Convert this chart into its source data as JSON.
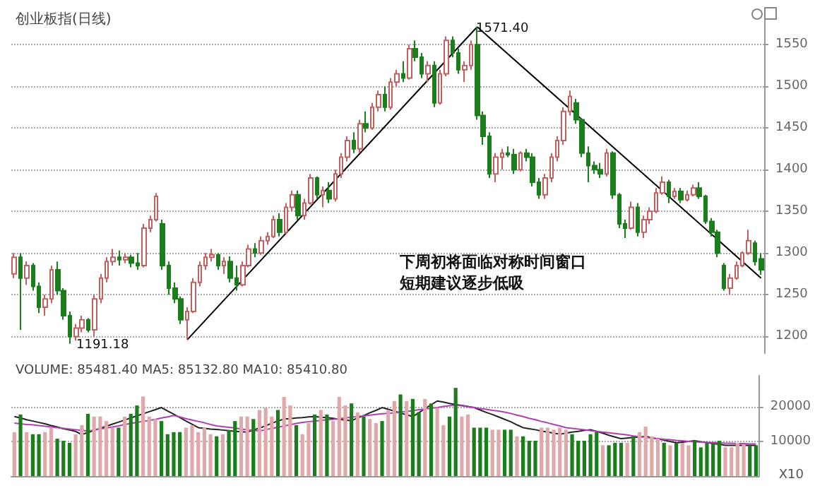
{
  "chart_data": [
    {
      "type": "candlestick",
      "title": "创业板指(日线)",
      "categories": [
        null,
        null,
        null,
        null,
        null,
        null,
        null,
        null,
        null,
        null,
        null,
        null,
        null,
        null,
        null,
        null,
        null,
        null,
        null,
        null,
        null,
        null,
        null,
        null,
        null,
        null,
        null,
        null,
        null,
        null,
        null,
        null,
        null,
        null,
        null,
        null,
        null,
        null,
        null,
        null,
        null,
        null,
        null,
        null,
        null,
        null,
        null,
        null,
        null,
        null,
        null,
        null,
        null,
        null,
        null,
        null,
        null,
        null,
        null,
        null,
        null,
        null,
        null,
        null,
        null,
        null,
        null,
        null,
        null,
        null,
        null,
        null,
        null,
        null,
        null,
        null,
        null,
        null,
        null,
        null,
        null,
        null,
        null,
        null,
        null,
        null,
        null,
        null,
        null,
        null,
        null,
        null,
        null,
        null,
        null,
        null,
        null,
        null,
        null,
        null,
        null,
        null,
        null,
        null,
        null,
        null,
        null,
        null,
        null,
        null,
        null,
        null,
        null,
        null,
        null,
        null,
        null,
        null,
        null,
        null,
        null,
        null
      ],
      "ohlc": [
        [
          1275,
          1300,
          1270,
          1295
        ],
        [
          1295,
          1300,
          1208,
          1270
        ],
        [
          1270,
          1290,
          1262,
          1285
        ],
        [
          1285,
          1288,
          1255,
          1260
        ],
        [
          1260,
          1265,
          1228,
          1235
        ],
        [
          1235,
          1250,
          1225,
          1245
        ],
        [
          1245,
          1285,
          1240,
          1280
        ],
        [
          1280,
          1290,
          1250,
          1255
        ],
        [
          1255,
          1258,
          1220,
          1225
        ],
        [
          1225,
          1230,
          1191.18,
          1200
        ],
        [
          1200,
          1215,
          1195,
          1210
        ],
        [
          1210,
          1225,
          1205,
          1220
        ],
        [
          1220,
          1222,
          1205,
          1208
        ],
        [
          1208,
          1250,
          1200,
          1245
        ],
        [
          1245,
          1275,
          1240,
          1270
        ],
        [
          1270,
          1295,
          1265,
          1290
        ],
        [
          1290,
          1305,
          1285,
          1295
        ],
        [
          1295,
          1303,
          1285,
          1292
        ],
        [
          1292,
          1300,
          1288,
          1295
        ],
        [
          1295,
          1298,
          1283,
          1288
        ],
        [
          1288,
          1300,
          1280,
          1285
        ],
        [
          1285,
          1335,
          1283,
          1330
        ],
        [
          1330,
          1345,
          1325,
          1340
        ],
        [
          1340,
          1372,
          1338,
          1368
        ],
        [
          1335,
          1340,
          1280,
          1285
        ],
        [
          1285,
          1290,
          1250,
          1258
        ],
        [
          1258,
          1265,
          1240,
          1245
        ],
        [
          1245,
          1248,
          1215,
          1220
        ],
        [
          1220,
          1235,
          1196,
          1230
        ],
        [
          1230,
          1270,
          1228,
          1265
        ],
        [
          1265,
          1290,
          1260,
          1285
        ],
        [
          1285,
          1300,
          1280,
          1295
        ],
        [
          1295,
          1305,
          1290,
          1298
        ],
        [
          1298,
          1300,
          1280,
          1285
        ],
        [
          1285,
          1295,
          1275,
          1290
        ],
        [
          1290,
          1296,
          1265,
          1270
        ],
        [
          1270,
          1285,
          1255,
          1262
        ],
        [
          1262,
          1290,
          1260,
          1285
        ],
        [
          1285,
          1310,
          1283,
          1305
        ],
        [
          1305,
          1312,
          1295,
          1300
        ],
        [
          1300,
          1320,
          1298,
          1315
        ],
        [
          1315,
          1325,
          1310,
          1320
        ],
        [
          1320,
          1345,
          1318,
          1340
        ],
        [
          1340,
          1348,
          1320,
          1325
        ],
        [
          1325,
          1360,
          1323,
          1355
        ],
        [
          1355,
          1375,
          1350,
          1370
        ],
        [
          1370,
          1375,
          1340,
          1345
        ],
        [
          1345,
          1365,
          1340,
          1360
        ],
        [
          1360,
          1395,
          1358,
          1390
        ],
        [
          1390,
          1392,
          1365,
          1370
        ],
        [
          1370,
          1380,
          1355,
          1375
        ],
        [
          1375,
          1385,
          1360,
          1365
        ],
        [
          1365,
          1400,
          1362,
          1395
        ],
        [
          1395,
          1420,
          1390,
          1415
        ],
        [
          1415,
          1440,
          1410,
          1435
        ],
        [
          1435,
          1445,
          1420,
          1425
        ],
        [
          1425,
          1460,
          1420,
          1455
        ],
        [
          1455,
          1470,
          1445,
          1450
        ],
        [
          1450,
          1480,
          1448,
          1475
        ],
        [
          1475,
          1495,
          1470,
          1490
        ],
        [
          1490,
          1500,
          1470,
          1475
        ],
        [
          1475,
          1510,
          1472,
          1505
        ],
        [
          1505,
          1520,
          1500,
          1515
        ],
        [
          1515,
          1530,
          1505,
          1510
        ],
        [
          1510,
          1550,
          1508,
          1545
        ],
        [
          1545,
          1555,
          1530,
          1535
        ],
        [
          1535,
          1540,
          1510,
          1515
        ],
        [
          1515,
          1530,
          1505,
          1525
        ],
        [
          1525,
          1530,
          1475,
          1480
        ],
        [
          1480,
          1520,
          1478,
          1515
        ],
        [
          1515,
          1560,
          1512,
          1555
        ],
        [
          1555,
          1560,
          1535,
          1540
        ],
        [
          1540,
          1545,
          1515,
          1520
        ],
        [
          1520,
          1530,
          1505,
          1525
        ],
        [
          1525,
          1555,
          1520,
          1550
        ],
        [
          1550,
          1571.4,
          1460,
          1465
        ],
        [
          1465,
          1470,
          1430,
          1440
        ],
        [
          1440,
          1445,
          1390,
          1395
        ],
        [
          1395,
          1420,
          1385,
          1415
        ],
        [
          1415,
          1425,
          1400,
          1420
        ],
        [
          1420,
          1428,
          1415,
          1418
        ],
        [
          1418,
          1425,
          1395,
          1400
        ],
        [
          1400,
          1422,
          1398,
          1420
        ],
        [
          1420,
          1425,
          1410,
          1415
        ],
        [
          1415,
          1420,
          1380,
          1385
        ],
        [
          1385,
          1390,
          1365,
          1370
        ],
        [
          1370,
          1395,
          1365,
          1390
        ],
        [
          1390,
          1420,
          1385,
          1415
        ],
        [
          1415,
          1440,
          1410,
          1435
        ],
        [
          1435,
          1475,
          1430,
          1470
        ],
        [
          1470,
          1495,
          1465,
          1488
        ],
        [
          1480,
          1485,
          1455,
          1460
        ],
        [
          1460,
          1462,
          1415,
          1420
        ],
        [
          1420,
          1428,
          1385,
          1405
        ],
        [
          1405,
          1410,
          1395,
          1400
        ],
        [
          1400,
          1408,
          1390,
          1395
        ],
        [
          1395,
          1425,
          1392,
          1420
        ],
        [
          1420,
          1422,
          1365,
          1370
        ],
        [
          1370,
          1372,
          1330,
          1335
        ],
        [
          1335,
          1340,
          1318,
          1330
        ],
        [
          1330,
          1362,
          1328,
          1355
        ],
        [
          1355,
          1360,
          1320,
          1325
        ],
        [
          1325,
          1345,
          1318,
          1340
        ],
        [
          1340,
          1355,
          1335,
          1350
        ],
        [
          1350,
          1378,
          1348,
          1372
        ],
        [
          1372,
          1392,
          1370,
          1385
        ],
        [
          1385,
          1388,
          1360,
          1368
        ],
        [
          1368,
          1378,
          1365,
          1374
        ],
        [
          1374,
          1378,
          1360,
          1364
        ],
        [
          1364,
          1375,
          1362,
          1370
        ],
        [
          1370,
          1382,
          1368,
          1378
        ],
        [
          1378,
          1385,
          1365,
          1368
        ],
        [
          1368,
          1370,
          1335,
          1338
        ],
        [
          1338,
          1342,
          1320,
          1325
        ],
        [
          1325,
          1328,
          1295,
          1300
        ],
        [
          1285,
          1288,
          1255,
          1258
        ],
        [
          1258,
          1275,
          1250,
          1270
        ],
        [
          1270,
          1290,
          1268,
          1285
        ],
        [
          1285,
          1302,
          1283,
          1300
        ],
        [
          1300,
          1328,
          1298,
          1315
        ],
        [
          1312,
          1315,
          1285,
          1290
        ],
        [
          1293,
          1300,
          1274,
          1280
        ]
      ],
      "colors": [
        "#c06060",
        "#1b7d1b",
        "#c06060",
        "#1b7d1b",
        "#1b7d1b",
        "#c06060",
        "#c06060",
        "#1b7d1b",
        "#1b7d1b",
        "#1b7d1b",
        "#c06060",
        "#c06060",
        "#1b7d1b",
        "#c06060",
        "#c06060",
        "#c06060",
        "#c06060",
        "#1b7d1b",
        "#c06060",
        "#1b7d1b",
        "#1b7d1b",
        "#c06060",
        "#c06060",
        "#c06060",
        "#1b7d1b",
        "#1b7d1b",
        "#1b7d1b",
        "#1b7d1b",
        "#c06060",
        "#c06060",
        "#c06060",
        "#c06060",
        "#c06060",
        "#1b7d1b",
        "#c06060",
        "#1b7d1b",
        "#1b7d1b",
        "#c06060",
        "#c06060",
        "#1b7d1b",
        "#c06060",
        "#c06060",
        "#c06060",
        "#1b7d1b",
        "#c06060",
        "#c06060",
        "#1b7d1b",
        "#c06060",
        "#c06060",
        "#1b7d1b",
        "#c06060",
        "#1b7d1b",
        "#c06060",
        "#c06060",
        "#c06060",
        "#1b7d1b",
        "#c06060",
        "#1b7d1b",
        "#c06060",
        "#c06060",
        "#1b7d1b",
        "#c06060",
        "#c06060",
        "#1b7d1b",
        "#c06060",
        "#1b7d1b",
        "#1b7d1b",
        "#c06060",
        "#1b7d1b",
        "#c06060",
        "#c06060",
        "#1b7d1b",
        "#1b7d1b",
        "#c06060",
        "#c06060",
        "#1b7d1b",
        "#1b7d1b",
        "#1b7d1b",
        "#c06060",
        "#c06060",
        "#1b7d1b",
        "#1b7d1b",
        "#c06060",
        "#1b7d1b",
        "#1b7d1b",
        "#1b7d1b",
        "#c06060",
        "#c06060",
        "#c06060",
        "#c06060",
        "#c06060",
        "#1b7d1b",
        "#1b7d1b",
        "#1b7d1b",
        "#1b7d1b",
        "#1b7d1b",
        "#c06060",
        "#1b7d1b",
        "#1b7d1b",
        "#1b7d1b",
        "#c06060",
        "#1b7d1b",
        "#c06060",
        "#c06060",
        "#c06060",
        "#c06060",
        "#1b7d1b",
        "#c06060",
        "#1b7d1b",
        "#c06060",
        "#c06060",
        "#1b7d1b",
        "#1b7d1b",
        "#1b7d1b",
        "#1b7d1b",
        "#1b7d1b",
        "#c06060",
        "#c06060",
        "#c06060",
        "#c06060",
        "#1b7d1b",
        "#1b7d1b"
      ],
      "series": [
        {
          "type": "line",
          "color": "#000000",
          "values": [
            null,
            null,
            null,
            null,
            null,
            null,
            null,
            null,
            null,
            null,
            null,
            null,
            null,
            null,
            null,
            null,
            null,
            null,
            null,
            null,
            null,
            null,
            null,
            null,
            null,
            null,
            null,
            null,
            1196,
            null,
            null,
            null,
            null,
            null,
            null,
            null,
            null,
            null,
            null,
            null,
            null,
            null,
            null,
            null,
            null,
            null,
            null,
            null,
            null,
            null,
            null,
            null,
            null,
            null,
            null,
            null,
            null,
            null,
            null,
            null,
            null,
            null,
            null,
            null,
            null,
            null,
            null,
            null,
            null,
            null,
            null,
            null,
            null,
            null,
            null,
            1571.4,
            null,
            null,
            null,
            null,
            null,
            null,
            null,
            null,
            null,
            null,
            null,
            null,
            null,
            null,
            null,
            null,
            null,
            null,
            null,
            null,
            null,
            null,
            null,
            null,
            null,
            null,
            null,
            null,
            null,
            null,
            null,
            null,
            null,
            null,
            null,
            null,
            null,
            null,
            null,
            null,
            null,
            null,
            null,
            null,
            null,
            null
          ]
        },
        {
          "type": "line",
          "color": "#000000",
          "values": [
            null,
            null,
            null,
            null,
            null,
            null,
            null,
            null,
            null,
            null,
            null,
            null,
            null,
            null,
            null,
            null,
            null,
            null,
            null,
            null,
            null,
            null,
            null,
            null,
            null,
            null,
            null,
            null,
            null,
            null,
            null,
            null,
            null,
            null,
            null,
            null,
            null,
            null,
            null,
            null,
            null,
            null,
            null,
            null,
            null,
            null,
            null,
            null,
            null,
            null,
            null,
            null,
            null,
            null,
            null,
            null,
            null,
            null,
            null,
            null,
            null,
            null,
            null,
            null,
            null,
            null,
            null,
            null,
            null,
            null,
            null,
            null,
            null,
            null,
            null,
            1571.4,
            null,
            null,
            null,
            null,
            null,
            null,
            null,
            null,
            null,
            null,
            null,
            null,
            null,
            null,
            null,
            null,
            null,
            null,
            null,
            null,
            null,
            null,
            null,
            null,
            null,
            null,
            null,
            null,
            null,
            null,
            null,
            null,
            null,
            null,
            null,
            null,
            null,
            null,
            null,
            null,
            null,
            null,
            null,
            null,
            null,
            1270
          ]
        }
      ],
      "marker": "none",
      "ylim": [
        1180,
        1590
      ],
      "yticks": [
        1200,
        1250,
        1300,
        1350,
        1400,
        1450,
        1500,
        1550
      ],
      "grid": "y",
      "tick_labels": "y",
      "annotations": [
        "1571.40",
        "1191.18",
        "下周初将面临对称时间窗口",
        "短期建议逐步低吸"
      ]
    },
    {
      "type": "bar",
      "title": "VOLUME: 85481.40 MA5: 85132.80 MA10: 85410.80",
      "categories": [
        null,
        null,
        null,
        null,
        null,
        null,
        null,
        null,
        null,
        null,
        null,
        null,
        null,
        null,
        null,
        null,
        null,
        null,
        null,
        null,
        null,
        null,
        null,
        null,
        null,
        null,
        null,
        null,
        null,
        null,
        null,
        null,
        null,
        null,
        null,
        null,
        null,
        null,
        null,
        null,
        null,
        null,
        null,
        null,
        null,
        null,
        null,
        null,
        null,
        null,
        null,
        null,
        null,
        null,
        null,
        null,
        null,
        null,
        null,
        null,
        null,
        null,
        null,
        null,
        null,
        null,
        null,
        null,
        null,
        null,
        null,
        null,
        null,
        null,
        null,
        null,
        null,
        null,
        null,
        null,
        null,
        null,
        null,
        null,
        null,
        null,
        null,
        null,
        null,
        null,
        null,
        null,
        null,
        null,
        null,
        null,
        null,
        null,
        null,
        null,
        null,
        null,
        null,
        null,
        null,
        null,
        null,
        null,
        null,
        null,
        null,
        null,
        null,
        null,
        null,
        null,
        null,
        null,
        null,
        null,
        null,
        null
      ],
      "values": [
        12700,
        17800,
        12700,
        12100,
        12100,
        12700,
        14000,
        10800,
        10200,
        9600,
        12100,
        14700,
        18000,
        17200,
        17200,
        15900,
        14000,
        14000,
        17200,
        18000,
        20400,
        23000,
        17200,
        16500,
        15900,
        12100,
        12700,
        12700,
        14000,
        14700,
        12700,
        14000,
        12100,
        11500,
        12100,
        13300,
        15900,
        17200,
        17200,
        16500,
        19100,
        19700,
        17200,
        19100,
        22900,
        20400,
        14700,
        12100,
        15300,
        17800,
        19100,
        17800,
        15900,
        22900,
        20400,
        21000,
        18400,
        17200,
        16500,
        15300,
        15900,
        19100,
        21700,
        23600,
        21700,
        22300,
        18500,
        22300,
        21000,
        19700,
        14700,
        17200,
        25500,
        17200,
        17800,
        14000,
        14000,
        14000,
        13400,
        13400,
        13400,
        13400,
        11500,
        11500,
        10200,
        10200,
        14000,
        14000,
        13400,
        14000,
        13400,
        12100,
        10200,
        10200,
        12100,
        12700,
        8900,
        8900,
        9600,
        9600,
        9600,
        11500,
        12700,
        14300,
        11500,
        10800,
        9600,
        8900,
        9600,
        9600,
        8900,
        10200,
        8300,
        9600,
        9600,
        10200,
        8300,
        8300,
        9600,
        9200,
        8900,
        8900
      ],
      "colors": [
        "#e0a8a8",
        "#1b7d1b",
        "#e0a8a8",
        "#1b7d1b",
        "#1b7d1b",
        "#e0a8a8",
        "#e0a8a8",
        "#1b7d1b",
        "#1b7d1b",
        "#1b7d1b",
        "#e0a8a8",
        "#e0a8a8",
        "#1b7d1b",
        "#e0a8a8",
        "#e0a8a8",
        "#e0a8a8",
        "#e0a8a8",
        "#1b7d1b",
        "#e0a8a8",
        "#1b7d1b",
        "#1b7d1b",
        "#e0a8a8",
        "#e0a8a8",
        "#e0a8a8",
        "#1b7d1b",
        "#1b7d1b",
        "#1b7d1b",
        "#1b7d1b",
        "#e0a8a8",
        "#e0a8a8",
        "#e0a8a8",
        "#e0a8a8",
        "#e0a8a8",
        "#1b7d1b",
        "#e0a8a8",
        "#1b7d1b",
        "#1b7d1b",
        "#e0a8a8",
        "#e0a8a8",
        "#1b7d1b",
        "#e0a8a8",
        "#e0a8a8",
        "#e0a8a8",
        "#1b7d1b",
        "#e0a8a8",
        "#e0a8a8",
        "#1b7d1b",
        "#e0a8a8",
        "#e0a8a8",
        "#1b7d1b",
        "#e0a8a8",
        "#1b7d1b",
        "#e0a8a8",
        "#e0a8a8",
        "#e0a8a8",
        "#1b7d1b",
        "#e0a8a8",
        "#1b7d1b",
        "#e0a8a8",
        "#e0a8a8",
        "#1b7d1b",
        "#e0a8a8",
        "#e0a8a8",
        "#1b7d1b",
        "#e0a8a8",
        "#1b7d1b",
        "#1b7d1b",
        "#e0a8a8",
        "#1b7d1b",
        "#e0a8a8",
        "#e0a8a8",
        "#1b7d1b",
        "#1b7d1b",
        "#e0a8a8",
        "#e0a8a8",
        "#1b7d1b",
        "#1b7d1b",
        "#1b7d1b",
        "#e0a8a8",
        "#e0a8a8",
        "#1b7d1b",
        "#1b7d1b",
        "#e0a8a8",
        "#1b7d1b",
        "#1b7d1b",
        "#1b7d1b",
        "#e0a8a8",
        "#e0a8a8",
        "#e0a8a8",
        "#e0a8a8",
        "#e0a8a8",
        "#1b7d1b",
        "#1b7d1b",
        "#1b7d1b",
        "#1b7d1b",
        "#1b7d1b",
        "#e0a8a8",
        "#1b7d1b",
        "#1b7d1b",
        "#1b7d1b",
        "#e0a8a8",
        "#1b7d1b",
        "#e0a8a8",
        "#e0a8a8",
        "#e0a8a8",
        "#e0a8a8",
        "#1b7d1b",
        "#e0a8a8",
        "#1b7d1b",
        "#e0a8a8",
        "#e0a8a8",
        "#1b7d1b",
        "#1b7d1b",
        "#1b7d1b",
        "#1b7d1b",
        "#1b7d1b",
        "#e0a8a8",
        "#e0a8a8",
        "#e0a8a8",
        "#e0a8a8",
        "#1b7d1b",
        "#1b7d1b"
      ],
      "series": [
        {
          "type": "line",
          "color": "#222222",
          "values": [
            17200,
            16800,
            16300,
            15900,
            15500,
            15100,
            14600,
            14200,
            13700,
            13300,
            12900,
            12000,
            12600,
            13200,
            13800,
            14400,
            15000,
            15600,
            16200,
            16800,
            17400,
            18000,
            18600,
            19200,
            19800,
            18800,
            17900,
            16900,
            15900,
            15000,
            14000,
            13800,
            13600,
            13500,
            13300,
            13100,
            12900,
            12800,
            12700,
            13300,
            13900,
            14500,
            15300,
            15900,
            16500,
            16600,
            16800,
            16900,
            17100,
            17200,
            17000,
            16900,
            16700,
            16400,
            16200,
            16000,
            16800,
            17500,
            18300,
            19000,
            19800,
            19300,
            18800,
            18200,
            17700,
            17200,
            18300,
            19500,
            20600,
            21700,
            21400,
            21000,
            20700,
            20400,
            20100,
            19800,
            19100,
            18400,
            17800,
            17100,
            16400,
            15700,
            14800,
            14000,
            13700,
            13400,
            13000,
            12700,
            12400,
            12100,
            12400,
            12700,
            12900,
            13200,
            13400,
            12900,
            12400,
            11800,
            11300,
            10800,
            11000,
            11200,
            11300,
            11500,
            11100,
            10700,
            10400,
            10000,
            9600,
            9800,
            10000,
            10200,
            9900,
            9700,
            9400,
            9200,
            8900,
            8900,
            8900,
            8900,
            8900,
            8900
          ]
        },
        {
          "type": "line",
          "color": "#b040b0",
          "values": [
            15300,
            15100,
            14900,
            14800,
            14600,
            14400,
            14200,
            14000,
            13800,
            13600,
            13400,
            13200,
            13000,
            13300,
            13600,
            13900,
            14200,
            14500,
            14900,
            15200,
            15500,
            15800,
            16100,
            16400,
            16800,
            17100,
            17500,
            17100,
            16600,
            16200,
            15800,
            15400,
            14900,
            14500,
            14300,
            14100,
            13900,
            13600,
            13400,
            13200,
            13000,
            13400,
            13800,
            14100,
            14500,
            14800,
            15200,
            15500,
            15700,
            15900,
            16100,
            16300,
            16400,
            16600,
            16800,
            17000,
            17200,
            17400,
            17600,
            17800,
            18000,
            18100,
            18300,
            18500,
            18700,
            18900,
            19200,
            19400,
            19600,
            19800,
            20100,
            20300,
            20500,
            20300,
            20000,
            19800,
            19500,
            19300,
            19000,
            18800,
            18500,
            18100,
            17600,
            17200,
            16700,
            16300,
            15800,
            15400,
            14900,
            14500,
            14000,
            13800,
            13600,
            13400,
            13100,
            12900,
            12700,
            12500,
            12300,
            12100,
            11900,
            11600,
            11400,
            11200,
            11000,
            10800,
            10600,
            10500,
            10300,
            10200,
            10000,
            9900,
            9800,
            9700,
            9700,
            9600,
            9500,
            9500,
            9400,
            9400,
            9300,
            9300
          ]
        }
      ],
      "marker": "none",
      "ylim": [
        0,
        29000
      ],
      "yticks": [
        10000,
        20000
      ],
      "grid": "y",
      "tick_labels": "y",
      "annotations": [
        "X10"
      ]
    }
  ]
}
